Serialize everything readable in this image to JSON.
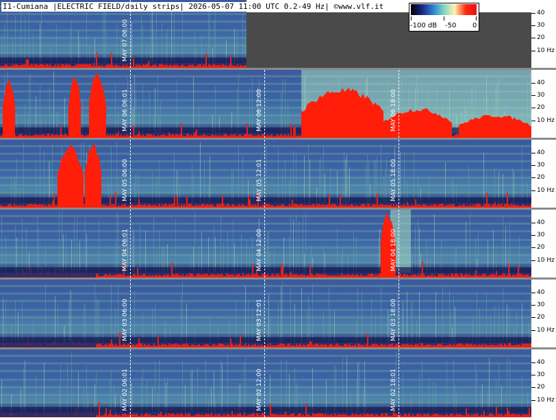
{
  "title": "I1-Cumiana |ELECTRIC FIELD/daily strips| 2026-05-07 11:00 UTC 0.2-49 Hz| ©www.vlf.it",
  "colorbar": {
    "labels": [
      "-100 dB",
      "-50",
      "0"
    ],
    "colors": [
      "#000000",
      "#1a237e",
      "#2e7bd1",
      "#7ad6c8",
      "#fff1b0",
      "#ff2a10",
      "#e81010"
    ]
  },
  "freq_axis": {
    "labels": [
      "40",
      "30",
      "20",
      "10 Hz"
    ],
    "values": [
      40,
      30,
      20,
      10
    ],
    "ylim_hz": [
      0.2,
      49
    ]
  },
  "strips": [
    {
      "date": "MAY 07",
      "marks": [
        "MAY 07  06:00"
      ],
      "partial": true
    },
    {
      "date": "MAY 06",
      "marks": [
        "MAY 06  06:01",
        "MAY 06  12:00",
        "MAY 06  18:00"
      ]
    },
    {
      "date": "MAY 05",
      "marks": [
        "MAY 05  06:00",
        "MAY 05  12:01",
        "MAY 05  18:00"
      ]
    },
    {
      "date": "MAY 04",
      "marks": [
        "MAY 04  06:01",
        "MAY 04  12:00",
        "MAY 04  18:00"
      ]
    },
    {
      "date": "MAY 03",
      "marks": [
        "MAY 03  06:00",
        "MAY 03  12:01",
        "MAY 03  18:00"
      ]
    },
    {
      "date": "MAY 02",
      "marks": [
        "MAY 02  06:01",
        "MAY 02  12:00",
        "MAY 02  18:01"
      ]
    }
  ],
  "colors": {
    "background_blue": "#2f4a9a",
    "band_green": "#7fb39a",
    "hot_red": "#ff1e0a",
    "separator": "#8a8a8a",
    "empty": "#4a4a4a"
  }
}
